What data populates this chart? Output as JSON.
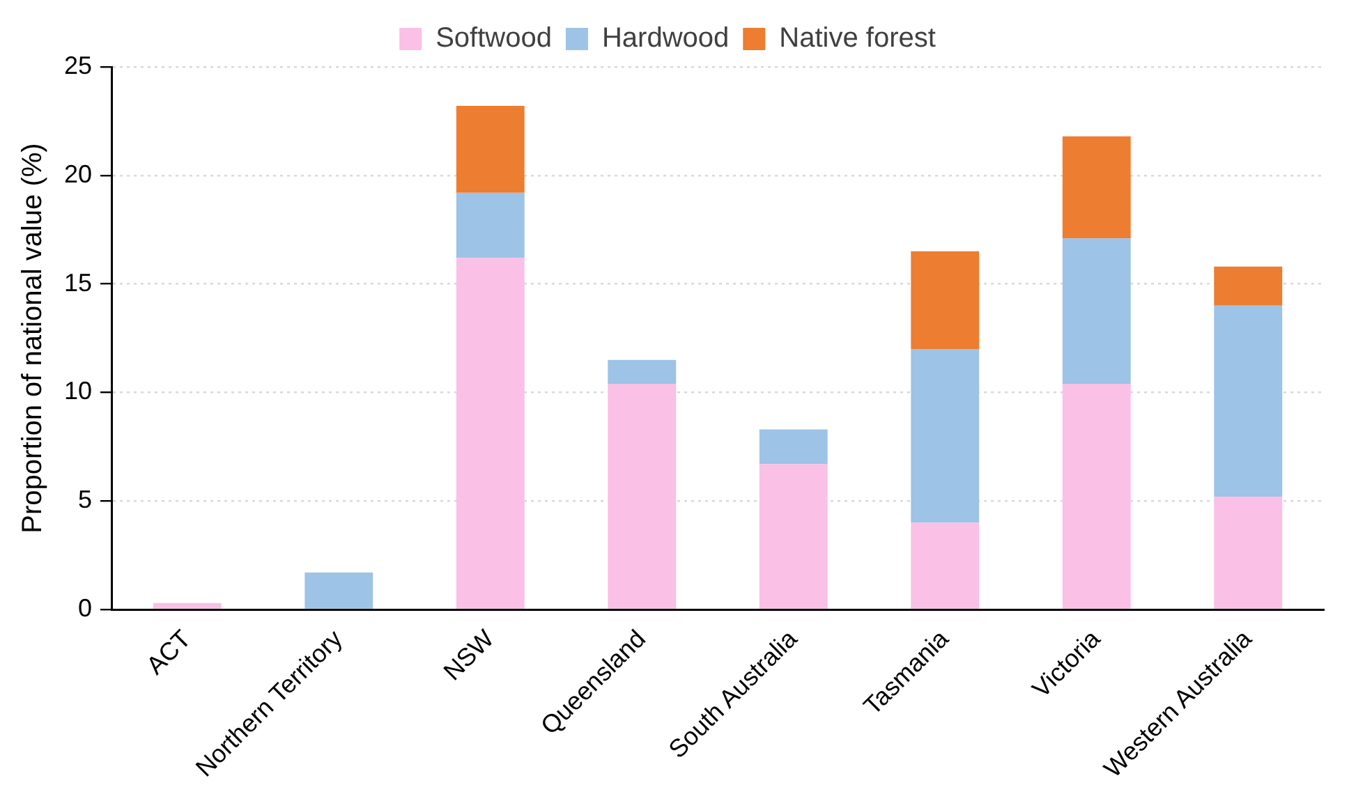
{
  "chart_data": {
    "type": "bar",
    "stacked": true,
    "ylabel": "Proportion of national value (%)",
    "categories": [
      "ACT",
      "Northern Territory",
      "NSW",
      "Queensland",
      "South Australia",
      "Tasmania",
      "Victoria",
      "Western Australia"
    ],
    "series": [
      {
        "name": "Softwood",
        "color": "#fac0e6",
        "values": [
          0.3,
          0,
          16.2,
          10.4,
          6.7,
          4,
          10.4,
          5.2
        ]
      },
      {
        "name": "Hardwood",
        "color": "#9dc3e6",
        "values": [
          0,
          1.7,
          3,
          1.1,
          1.6,
          8,
          6.7,
          8.8
        ]
      },
      {
        "name": "Native forest",
        "color": "#ed7d31",
        "values": [
          0,
          0,
          4,
          0,
          0,
          4.5,
          4.7,
          1.8
        ]
      }
    ],
    "ylim": [
      0,
      25
    ],
    "yticks": [
      0,
      5,
      10,
      15,
      20,
      25
    ],
    "grid": "y",
    "legend": "top"
  }
}
